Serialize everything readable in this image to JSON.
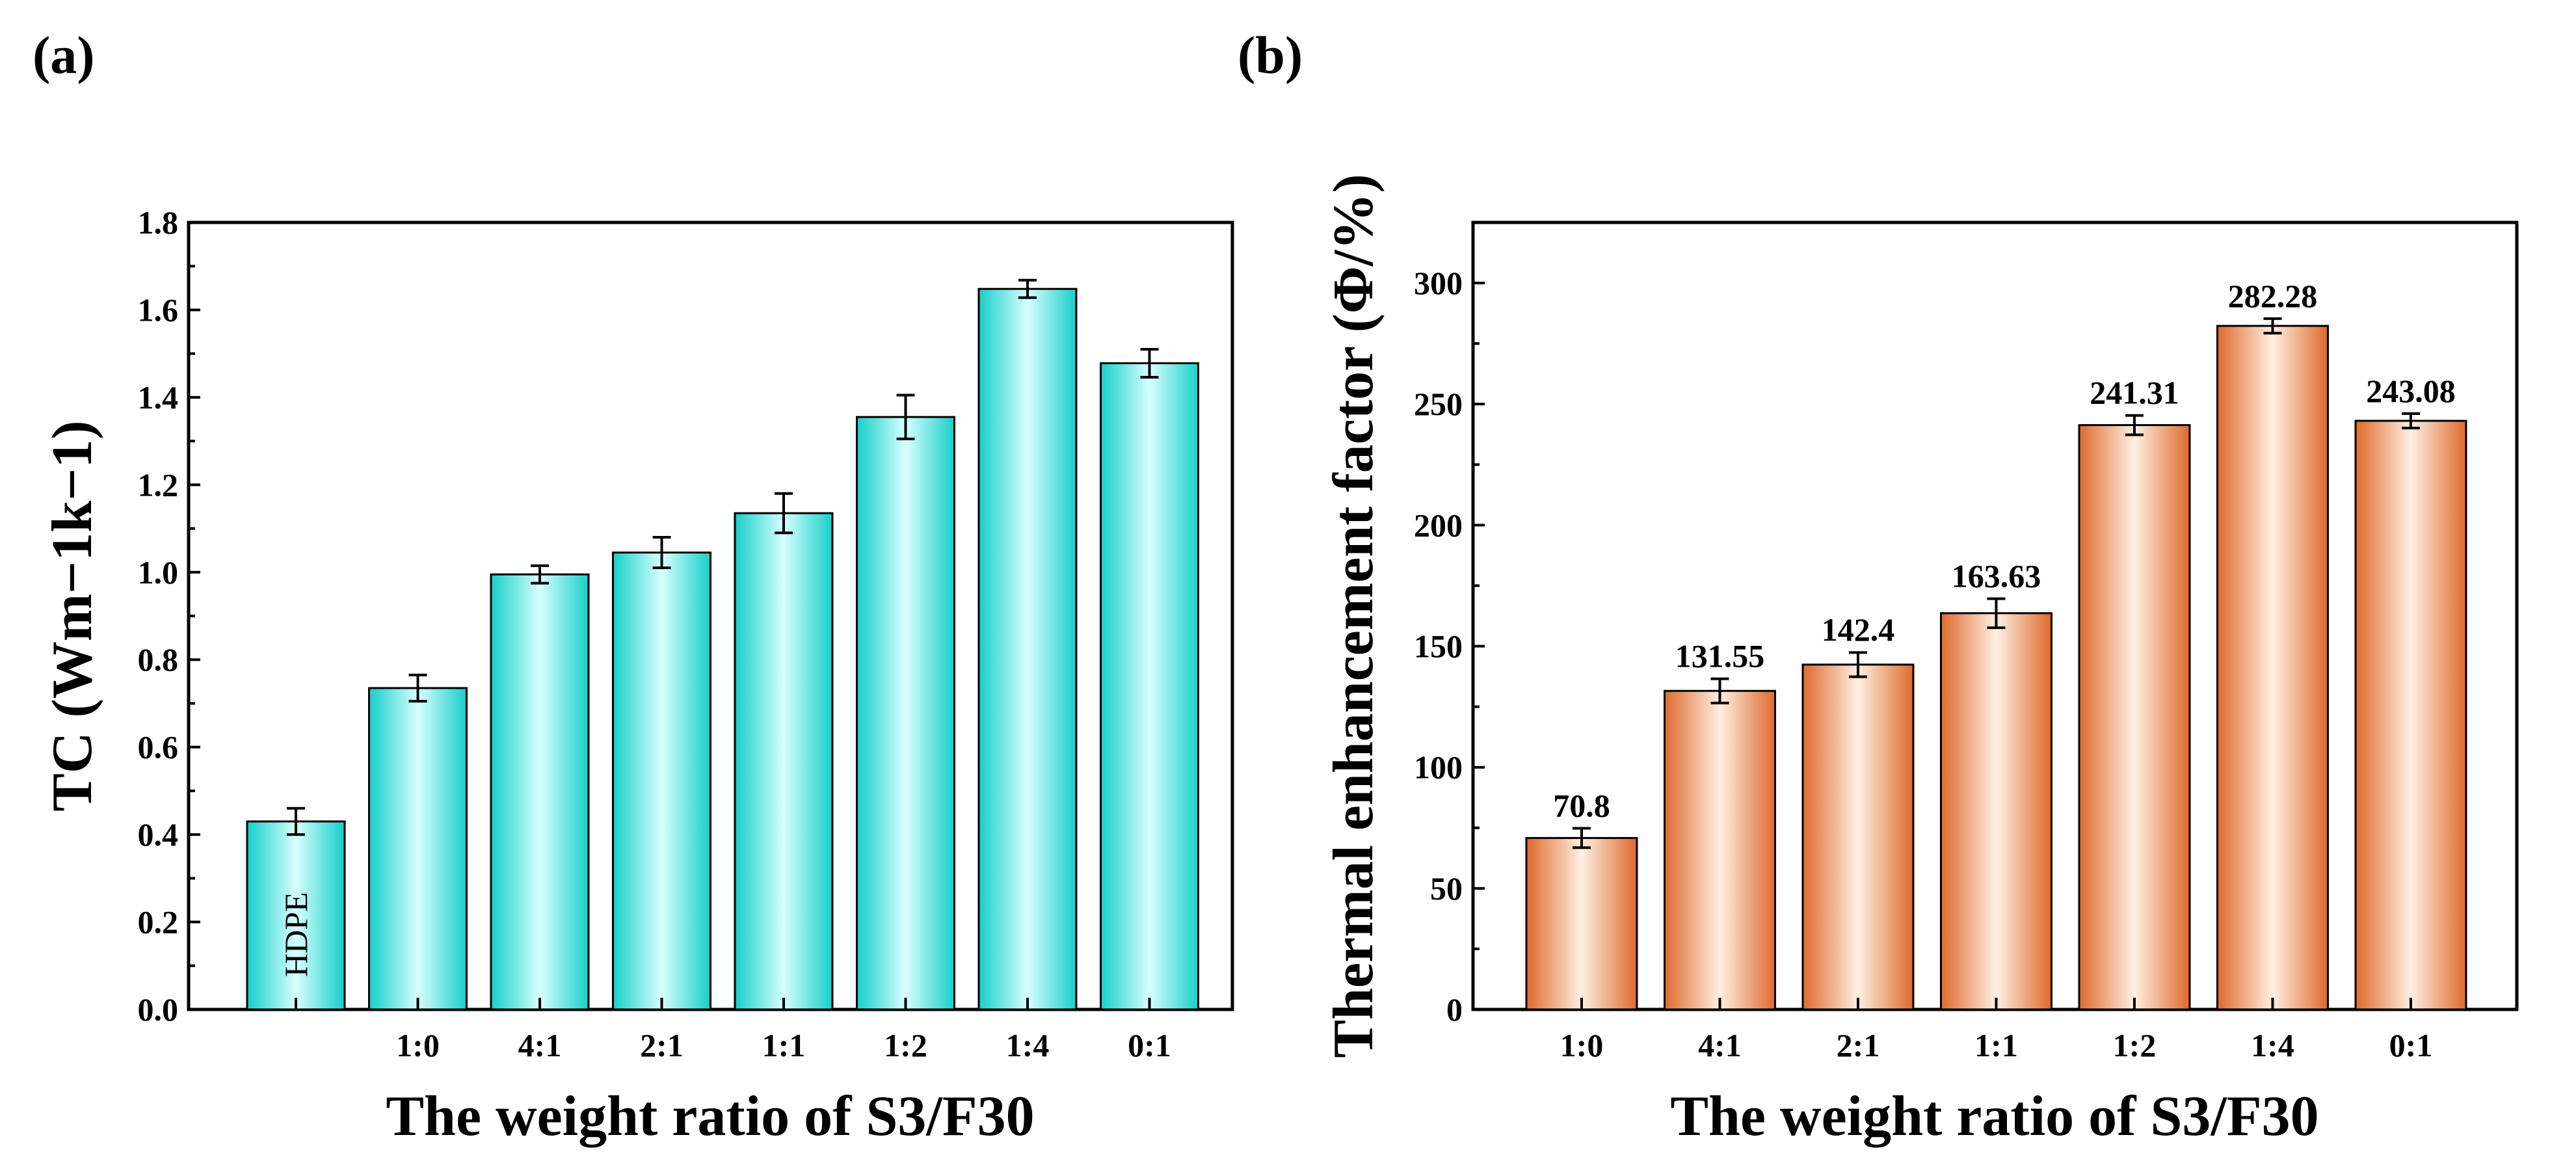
{
  "panels": [
    {
      "label": "(a)"
    },
    {
      "label": "(b)"
    }
  ],
  "chart_data": [
    {
      "type": "bar",
      "categories": [
        "",
        "1:0",
        "4:1",
        "2:1",
        "1:1",
        "1:2",
        "1:4",
        "0:1"
      ],
      "values": [
        0.43,
        0.735,
        0.995,
        1.045,
        1.135,
        1.355,
        1.648,
        1.478
      ],
      "errors": [
        0.03,
        0.03,
        0.02,
        0.035,
        0.045,
        0.05,
        0.02,
        0.032
      ],
      "bar_inner_labels": [
        "HDPE",
        "",
        "",
        "",
        "",
        "",
        "",
        ""
      ],
      "xlabel": "The weight ratio of S3/F30",
      "ylabel": "TC (Wm−1k−1)",
      "ylim": [
        0,
        1.8
      ],
      "yticks": [
        "0.0",
        "0.2",
        "0.4",
        "0.6",
        "0.8",
        "1.0",
        "1.2",
        "1.4",
        "1.6",
        "1.8"
      ],
      "color": "#2ee3df",
      "grid": false
    },
    {
      "type": "bar",
      "categories": [
        "1:0",
        "4:1",
        "2:1",
        "1:1",
        "1:2",
        "1:4",
        "0:1"
      ],
      "values": [
        70.8,
        131.55,
        142.4,
        163.63,
        241.31,
        282.28,
        243.08
      ],
      "data_labels": [
        "70.8",
        "131.55",
        "142.4",
        "163.63",
        "241.31",
        "282.28",
        "243.08"
      ],
      "errors": [
        4,
        5,
        5,
        6,
        4,
        3,
        3
      ],
      "xlabel": "The weight ratio of S3/F30",
      "ylabel": "Thermal enhancement factor (Φ/%)",
      "ylim": [
        0,
        325
      ],
      "yticks": [
        "0",
        "50",
        "100",
        "150",
        "200",
        "250",
        "300"
      ],
      "color": "#e8753a",
      "grid": false
    }
  ]
}
